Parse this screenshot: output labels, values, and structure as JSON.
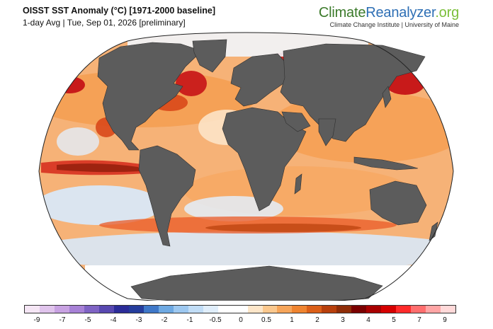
{
  "header": {
    "title": "OISST SST Anomaly (°C) [1971-2000 baseline]",
    "subtitle": "1-day Avg | Tue, Sep 01, 2026 [preliminary]"
  },
  "brand": {
    "part1": "Climate",
    "part2": "Reanalyzer",
    "part3": ".org",
    "tagline": "Climate Change Institute | University of Maine"
  },
  "map": {
    "projection": "Robinson",
    "ocean_neutral_color": "#ffffff",
    "land_color": "#5c5c5c",
    "warm_color": "#f5a35c",
    "hot_color": "#c81a1a",
    "cool_color": "#bcd7f2"
  },
  "colorbar": {
    "colors": [
      "#f5e6f5",
      "#e0c4ec",
      "#c8a2e2",
      "#a781d6",
      "#7f63c4",
      "#5848b0",
      "#2b2c98",
      "#253d9c",
      "#3f78c8",
      "#6ea9e2",
      "#9dc8f0",
      "#c1ddf6",
      "#e0eefb",
      "#ffffff",
      "#ffffff",
      "#fde6c9",
      "#fbc88e",
      "#f6a55a",
      "#ef8430",
      "#db5f18",
      "#b8400c",
      "#8f2d08",
      "#7a0000",
      "#a80000",
      "#d50000",
      "#ff2a2a",
      "#ff6e6e",
      "#ffa5a5",
      "#ffd9d9"
    ],
    "tick_labels": [
      "-9",
      "-7",
      "-5",
      "-4",
      "-3",
      "-2",
      "-1",
      "-0.5",
      "0",
      "0.5",
      "1",
      "2",
      "3",
      "4",
      "5",
      "7",
      "9"
    ]
  }
}
